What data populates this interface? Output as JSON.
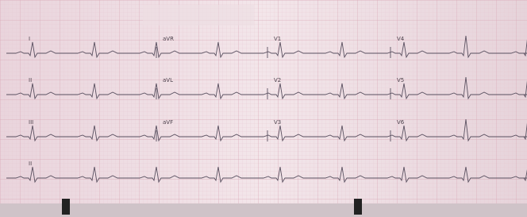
{
  "leads": {
    "rows": [
      [
        "I",
        "aVR",
        "V1",
        "V4"
      ],
      [
        "II",
        "aVL",
        "V2",
        "V5"
      ],
      [
        "III",
        "aVF",
        "V3",
        "V6"
      ],
      [
        "II"
      ]
    ]
  }
}
